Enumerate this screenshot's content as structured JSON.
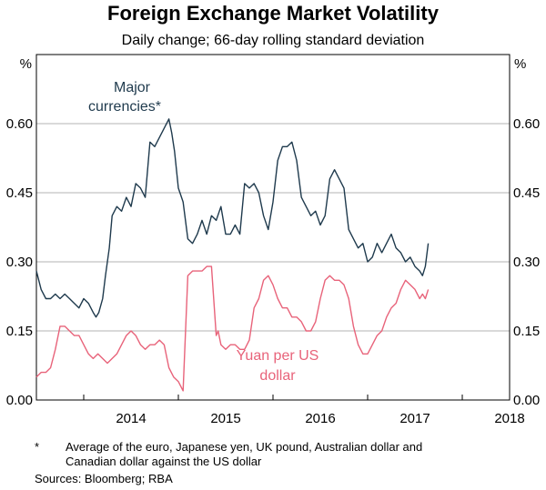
{
  "chart_data": {
    "type": "line",
    "title": "Foreign Exchange Market Volatility",
    "subtitle": "Daily change; 66-day rolling standard deviation",
    "ylabel_left": "%",
    "ylabel_right": "%",
    "ylim": [
      0,
      0.75
    ],
    "yticks": [
      "0.00",
      "0.15",
      "0.30",
      "0.45",
      "0.60"
    ],
    "xlim": [
      2013.5,
      2018.5
    ],
    "xticks": [
      "2014",
      "2015",
      "2016",
      "2017",
      "2018"
    ],
    "grid": true,
    "series": [
      {
        "name": "Major currencies*",
        "label_lines": [
          "Major",
          "currencies*"
        ],
        "color": "#1f3a4d",
        "x": [
          2013.5,
          2013.55,
          2013.6,
          2013.65,
          2013.7,
          2013.75,
          2013.8,
          2013.85,
          2013.9,
          2013.95,
          2014.0,
          2014.05,
          2014.1,
          2014.13,
          2014.16,
          2014.2,
          2014.23,
          2014.27,
          2014.3,
          2014.35,
          2014.4,
          2014.45,
          2014.5,
          2014.55,
          2014.6,
          2014.65,
          2014.7,
          2014.75,
          2014.8,
          2014.85,
          2014.9,
          2014.93,
          2014.96,
          2015.0,
          2015.05,
          2015.1,
          2015.15,
          2015.2,
          2015.25,
          2015.3,
          2015.35,
          2015.4,
          2015.45,
          2015.5,
          2015.55,
          2015.6,
          2015.65,
          2015.7,
          2015.75,
          2015.8,
          2015.85,
          2015.9,
          2015.95,
          2016.0,
          2016.05,
          2016.1,
          2016.15,
          2016.2,
          2016.25,
          2016.3,
          2016.35,
          2016.4,
          2016.45,
          2016.5,
          2016.55,
          2016.6,
          2016.65,
          2016.7,
          2016.75,
          2016.8,
          2016.85,
          2016.9,
          2016.95,
          2017.0,
          2017.05,
          2017.1,
          2017.15,
          2017.2,
          2017.25,
          2017.3,
          2017.35,
          2017.4,
          2017.45,
          2017.5,
          2017.55,
          2017.58,
          2017.61,
          2017.64
        ],
        "values": [
          0.28,
          0.24,
          0.22,
          0.22,
          0.23,
          0.22,
          0.23,
          0.22,
          0.21,
          0.2,
          0.22,
          0.21,
          0.19,
          0.18,
          0.19,
          0.22,
          0.27,
          0.33,
          0.4,
          0.42,
          0.41,
          0.44,
          0.42,
          0.47,
          0.46,
          0.44,
          0.56,
          0.55,
          0.57,
          0.59,
          0.61,
          0.58,
          0.54,
          0.46,
          0.43,
          0.35,
          0.34,
          0.36,
          0.39,
          0.36,
          0.4,
          0.39,
          0.42,
          0.36,
          0.36,
          0.38,
          0.36,
          0.47,
          0.46,
          0.47,
          0.45,
          0.4,
          0.37,
          0.43,
          0.52,
          0.55,
          0.55,
          0.56,
          0.52,
          0.44,
          0.42,
          0.4,
          0.41,
          0.38,
          0.4,
          0.48,
          0.5,
          0.48,
          0.46,
          0.37,
          0.35,
          0.33,
          0.34,
          0.3,
          0.31,
          0.34,
          0.32,
          0.34,
          0.36,
          0.33,
          0.32,
          0.3,
          0.31,
          0.29,
          0.28,
          0.27,
          0.29,
          0.34
        ]
      },
      {
        "name": "Yuan per US dollar",
        "label_lines": [
          "Yuan per US",
          "dollar"
        ],
        "color": "#e8637a",
        "x": [
          2013.5,
          2013.55,
          2013.6,
          2013.65,
          2013.7,
          2013.75,
          2013.8,
          2013.85,
          2013.9,
          2013.95,
          2014.0,
          2014.05,
          2014.1,
          2014.15,
          2014.2,
          2014.25,
          2014.3,
          2014.35,
          2014.4,
          2014.45,
          2014.5,
          2014.55,
          2014.6,
          2014.65,
          2014.7,
          2014.75,
          2014.8,
          2014.85,
          2014.9,
          2014.95,
          2015.0,
          2015.05,
          2015.1,
          2015.15,
          2015.2,
          2015.25,
          2015.3,
          2015.35,
          2015.4,
          2015.42,
          2015.45,
          2015.5,
          2015.55,
          2015.6,
          2015.65,
          2015.7,
          2015.75,
          2015.8,
          2015.85,
          2015.9,
          2015.95,
          2016.0,
          2016.05,
          2016.1,
          2016.15,
          2016.2,
          2016.25,
          2016.3,
          2016.35,
          2016.4,
          2016.45,
          2016.5,
          2016.55,
          2016.6,
          2016.65,
          2016.7,
          2016.75,
          2016.8,
          2016.85,
          2016.9,
          2016.95,
          2017.0,
          2017.05,
          2017.1,
          2017.15,
          2017.2,
          2017.25,
          2017.3,
          2017.35,
          2017.4,
          2017.45,
          2017.5,
          2017.55,
          2017.58,
          2017.61,
          2017.64
        ],
        "values": [
          0.05,
          0.06,
          0.06,
          0.07,
          0.11,
          0.16,
          0.16,
          0.15,
          0.14,
          0.14,
          0.12,
          0.1,
          0.09,
          0.1,
          0.09,
          0.08,
          0.09,
          0.1,
          0.12,
          0.14,
          0.15,
          0.14,
          0.12,
          0.11,
          0.12,
          0.12,
          0.13,
          0.12,
          0.07,
          0.05,
          0.04,
          0.02,
          0.27,
          0.28,
          0.28,
          0.28,
          0.29,
          0.29,
          0.14,
          0.15,
          0.12,
          0.11,
          0.12,
          0.12,
          0.11,
          0.11,
          0.13,
          0.2,
          0.22,
          0.26,
          0.27,
          0.25,
          0.22,
          0.2,
          0.2,
          0.18,
          0.18,
          0.17,
          0.15,
          0.15,
          0.17,
          0.22,
          0.26,
          0.27,
          0.26,
          0.26,
          0.25,
          0.22,
          0.16,
          0.12,
          0.1,
          0.1,
          0.12,
          0.14,
          0.15,
          0.18,
          0.2,
          0.21,
          0.24,
          0.26,
          0.25,
          0.24,
          0.22,
          0.23,
          0.22,
          0.24
        ]
      }
    ]
  },
  "notes": {
    "star": "*",
    "footnote_line1": "Average of the euro, Japanese yen, UK pound, Australian dollar and",
    "footnote_line2": "Canadian dollar against the US dollar",
    "sources": "Sources: Bloomberg; RBA"
  }
}
